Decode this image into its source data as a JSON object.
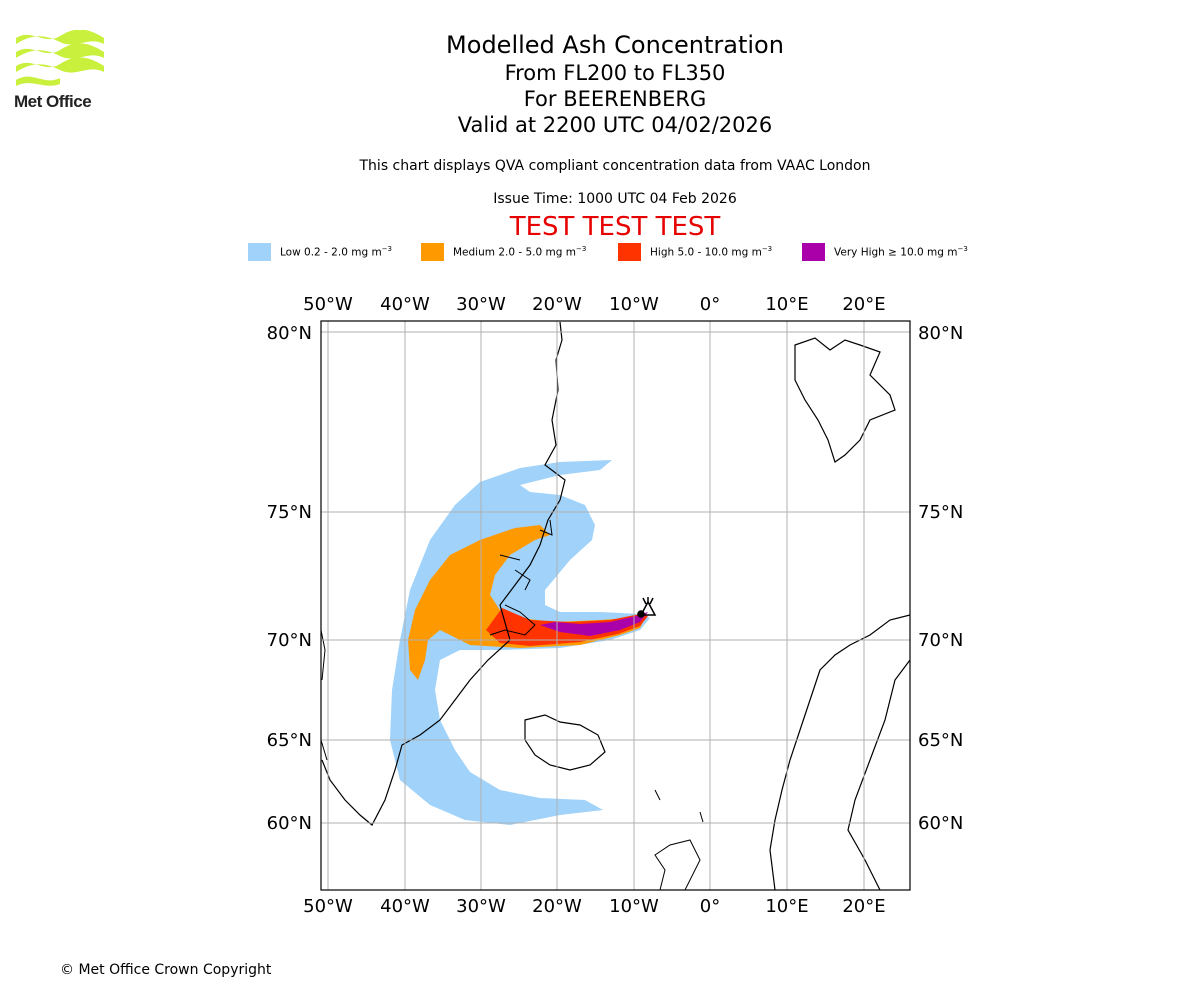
{
  "logo": {
    "text": "Met Office",
    "color": "#c8f03c"
  },
  "title": {
    "line1": "Modelled Ash Concentration",
    "line2": "From FL200 to FL350",
    "line3": "For BEERENBERG",
    "line4": "Valid at 2200 UTC 04/02/2026"
  },
  "subtitle": "This chart displays QVA compliant concentration data from VAAC London",
  "issue_time": "Issue Time: 1000 UTC 04 Feb 2026",
  "test_banner": "TEST TEST TEST",
  "legend": [
    {
      "label": "Low 0.2 - 2.0 mg m",
      "exp": "−3",
      "color": "#a0d2fa"
    },
    {
      "label": "Medium 2.0 - 5.0 mg m",
      "exp": "−3",
      "color": "#ff9900"
    },
    {
      "label": "High 5.0 - 10.0 mg m",
      "exp": "−3",
      "color": "#ff3300"
    },
    {
      "label": "Very High  ≥  10.0 mg m",
      "exp": "−3",
      "color": "#aa00aa"
    }
  ],
  "map": {
    "lon_labels": [
      "50°W",
      "40°W",
      "30°W",
      "20°W",
      "10°W",
      "0°",
      "10°E",
      "20°E"
    ],
    "lat_labels": [
      "80°N",
      "75°N",
      "70°N",
      "65°N",
      "60°N"
    ],
    "volcano": "BEERENBERG"
  },
  "copyright": "© Met Office Crown Copyright"
}
